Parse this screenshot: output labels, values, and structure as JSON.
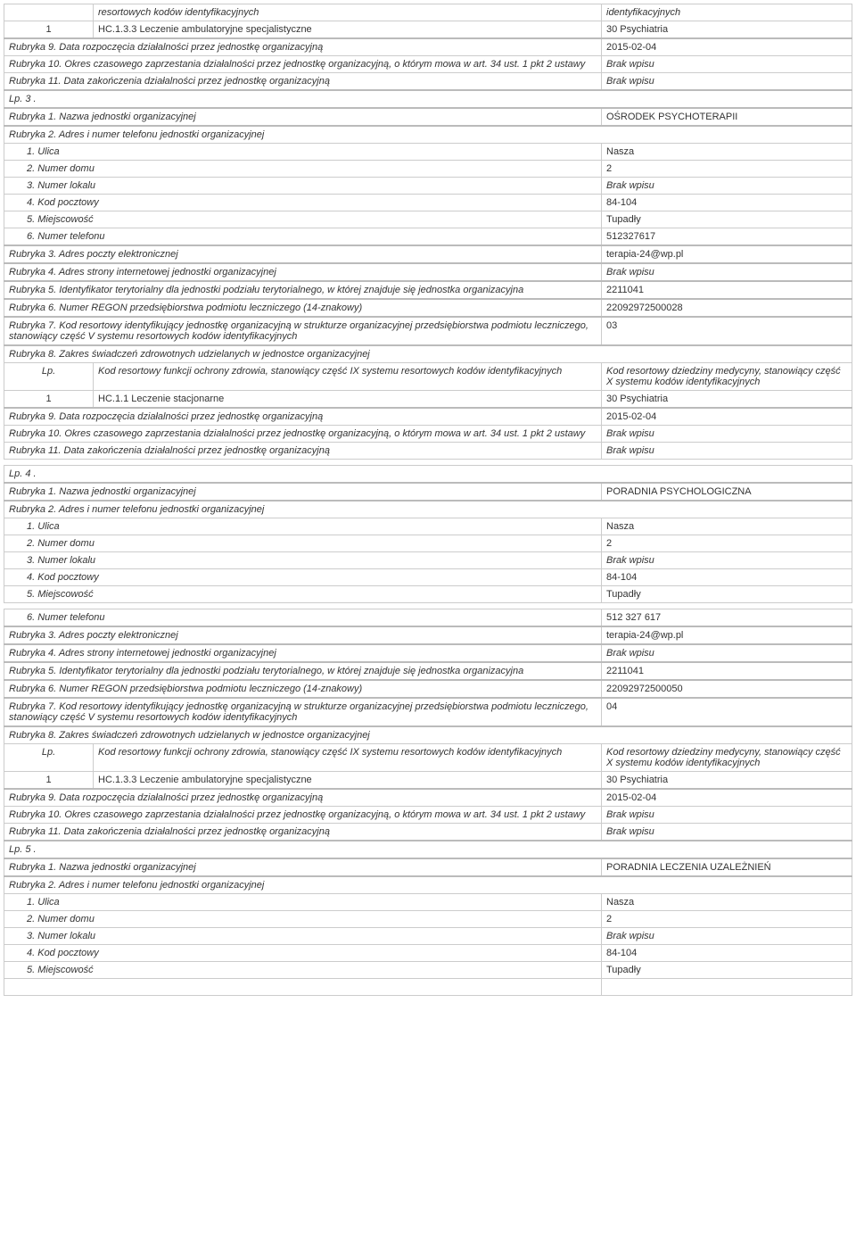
{
  "top": {
    "h1": "resortowych kodów identyfikacyjnych",
    "h2": "identyfikacyjnych",
    "r1c1": "1",
    "r1c2": "HC.1.3.3 Leczenie ambulatoryjne specjalistyczne",
    "r1c3": "30 Psychiatria",
    "r9l": "Rubryka 9. Data rozpoczęcia działalności przez jednostkę organizacyjną",
    "r9v": "2015-02-04",
    "r10l": "Rubryka 10. Okres czasowego zaprzestania działalności przez jednostkę organizacyjną, o którym mowa w art. 34 ust. 1 pkt 2 ustawy",
    "r10v": "Brak wpisu",
    "r11l": "Rubryka 11. Data zakończenia działalności przez jednostkę organizacyjną",
    "r11v": "Brak wpisu"
  },
  "lp3": {
    "header": "Lp. 3 .",
    "r1l": "Rubryka 1. Nazwa jednostki organizacyjnej",
    "r1v": "OŚRODEK PSYCHOTERAPII",
    "r2l": "Rubryka 2. Adres i numer telefonu jednostki organizacyjnej",
    "a1l": "1. Ulica",
    "a1v": " Nasza",
    "a2l": "2. Numer domu",
    "a2v": "2",
    "a3l": "3. Numer lokalu",
    "a3v": "Brak wpisu",
    "a4l": "4. Kod pocztowy",
    "a4v": "84-104",
    "a5l": "5. Miejscowość",
    "a5v": "Tupadły",
    "a6l": "6. Numer telefonu",
    "a6v": "512327617",
    "r3l": "Rubryka 3. Adres poczty elektronicznej",
    "r3v": "terapia-24@wp.pl",
    "r4l": "Rubryka 4. Adres strony internetowej jednostki organizacyjnej",
    "r4v": "Brak wpisu",
    "r5l": "Rubryka 5. Identyfikator terytorialny dla jednostki podziału terytorialnego, w której znajduje się jednostka organizacyjna",
    "r5v": "2211041",
    "r6l": "Rubryka 6. Numer REGON przedsiębiorstwa podmiotu leczniczego (14-znakowy)",
    "r6v": "22092972500028",
    "r7l": "Rubryka 7. Kod resortowy identyfikujący jednostkę organizacyjną w strukturze organizacyjnej przedsiębiorstwa podmiotu leczniczego, stanowiący część V systemu resortowych kodów identyfikacyjnych",
    "r7v": "03",
    "r8l": "Rubryka 8. Zakres świadczeń zdrowotnych udzielanych w jednostce organizacyjnej",
    "th1": "Lp.",
    "th2": "Kod resortowy funkcji ochrony zdrowia, stanowiący część IX systemu resortowych kodów identyfikacyjnych",
    "th3": "Kod resortowy dziedziny medycyny, stanowiący część X systemu kodów identyfikacyjnych",
    "td1": "1",
    "td2": "HC.1.1 Leczenie stacjonarne",
    "td3": "30 Psychiatria",
    "r9l": "Rubryka 9. Data rozpoczęcia działalności przez jednostkę organizacyjną",
    "r9v": "2015-02-04",
    "r10l": "Rubryka 10. Okres czasowego zaprzestania działalności przez jednostkę organizacyjną, o którym mowa w art. 34 ust. 1 pkt 2 ustawy",
    "r10v": "Brak wpisu",
    "r11l": "Rubryka 11. Data zakończenia działalności przez jednostkę organizacyjną",
    "r11v": "Brak wpisu"
  },
  "lp4": {
    "header": "Lp. 4 .",
    "r1l": "Rubryka 1. Nazwa jednostki organizacyjnej",
    "r1v": "PORADNIA PSYCHOLOGICZNA",
    "r2l": "Rubryka 2. Adres i numer telefonu jednostki organizacyjnej",
    "a1l": "1. Ulica",
    "a1v": " Nasza",
    "a2l": "2. Numer domu",
    "a2v": "2",
    "a3l": "3. Numer lokalu",
    "a3v": "Brak wpisu",
    "a4l": "4. Kod pocztowy",
    "a4v": "84-104",
    "a5l": "5. Miejscowość",
    "a5v": "Tupadły",
    "a6l": "6. Numer telefonu",
    "a6v": "512 327 617",
    "r3l": "Rubryka 3. Adres poczty elektronicznej",
    "r3v": "terapia-24@wp.pl",
    "r4l": "Rubryka 4. Adres strony internetowej jednostki organizacyjnej",
    "r4v": "Brak wpisu",
    "r5l": "Rubryka 5. Identyfikator terytorialny dla jednostki podziału terytorialnego, w której znajduje się jednostka organizacyjna",
    "r5v": "2211041",
    "r6l": "Rubryka 6. Numer REGON przedsiębiorstwa podmiotu leczniczego (14-znakowy)",
    "r6v": "22092972500050",
    "r7l": "Rubryka 7. Kod resortowy identyfikujący jednostkę organizacyjną w strukturze organizacyjnej przedsiębiorstwa podmiotu leczniczego, stanowiący część V systemu resortowych kodów identyfikacyjnych",
    "r7v": "04",
    "r8l": "Rubryka 8. Zakres świadczeń zdrowotnych udzielanych w jednostce organizacyjnej",
    "th1": "Lp.",
    "th2": "Kod resortowy funkcji ochrony zdrowia, stanowiący część IX systemu resortowych kodów identyfikacyjnych",
    "th3": "Kod resortowy dziedziny medycyny, stanowiący część X systemu kodów identyfikacyjnych",
    "td1": "1",
    "td2": "HC.1.3.3 Leczenie ambulatoryjne specjalistyczne",
    "td3": "30 Psychiatria",
    "r9l": "Rubryka 9. Data rozpoczęcia działalności przez jednostkę organizacyjną",
    "r9v": "2015-02-04",
    "r10l": "Rubryka 10. Okres czasowego zaprzestania działalności przez jednostkę organizacyjną, o którym mowa w art. 34 ust. 1 pkt 2 ustawy",
    "r10v": "Brak wpisu",
    "r11l": "Rubryka 11. Data zakończenia działalności przez jednostkę organizacyjną",
    "r11v": "Brak wpisu"
  },
  "lp5": {
    "header": "Lp. 5 .",
    "r1l": "Rubryka 1. Nazwa jednostki organizacyjnej",
    "r1v": "PORADNIA LECZENIA UZALEŻNIEŃ",
    "r2l": "Rubryka 2. Adres i numer telefonu jednostki organizacyjnej",
    "a1l": "1. Ulica",
    "a1v": " Nasza",
    "a2l": "2. Numer domu",
    "a2v": "2",
    "a3l": "3. Numer lokalu",
    "a3v": "Brak wpisu",
    "a4l": "4. Kod pocztowy",
    "a4v": "84-104",
    "a5l": "5. Miejscowość",
    "a5v": "Tupadły"
  }
}
